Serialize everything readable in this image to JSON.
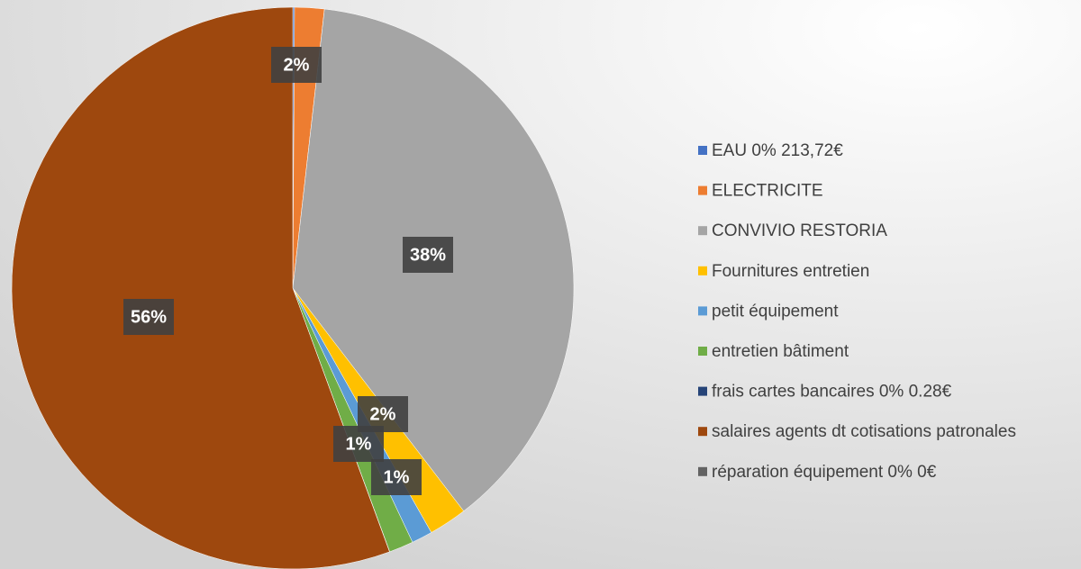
{
  "chart_data": {
    "type": "pie",
    "categories": [
      "EAU 0% 213,72€",
      "ELECTRICITE",
      "CONVIVIO RESTORIA",
      "Fournitures entretien",
      "petit équipement",
      "entretien bâtiment",
      "frais cartes bancaires 0% 0.28€",
      "salaires agents dt cotisations patronales",
      "réparation équipement 0% 0€"
    ],
    "values": [
      0.1,
      1.7,
      37.8,
      2.2,
      1.2,
      1.4,
      0.01,
      55.6,
      0
    ],
    "value_labels": [
      null,
      "2%",
      "38%",
      "2%",
      "1%",
      "1%",
      null,
      "56%",
      null
    ],
    "colors": [
      "#4472c4",
      "#ed7d31",
      "#a5a5a5",
      "#ffc000",
      "#5b9bd5",
      "#70ad47",
      "#264478",
      "#9e480e",
      "#636363"
    ],
    "legend": "right"
  }
}
